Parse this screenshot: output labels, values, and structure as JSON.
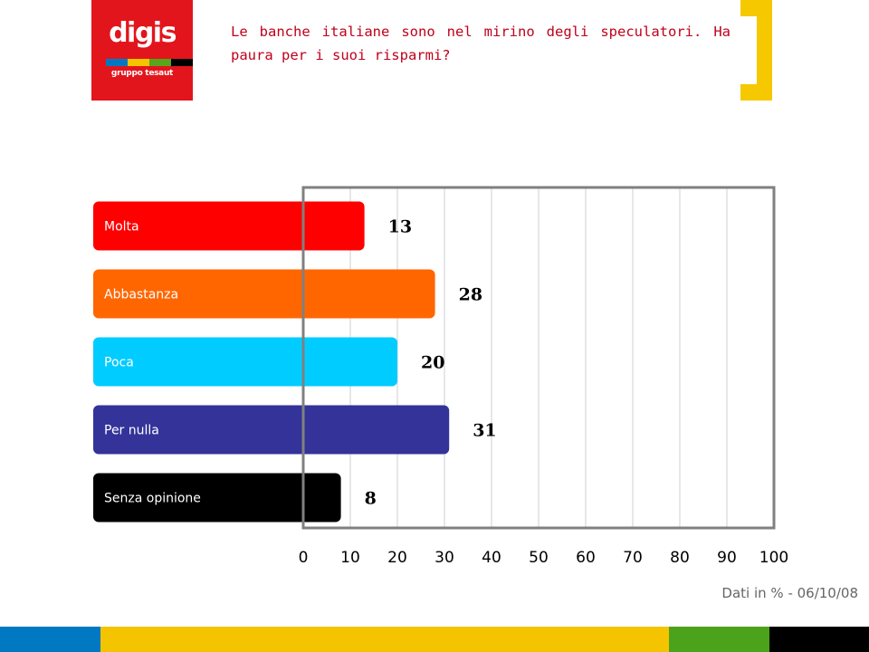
{
  "logo": {
    "word": "digis",
    "tagline": "gruppo tesaut",
    "background": "#e3151c",
    "stripe_colors": [
      "#0079c2",
      "#f5c400",
      "#58a61c",
      "#000000"
    ]
  },
  "header": {
    "title": "Le banche italiane sono nel mirino degli speculatori. Ha paura per i suoi risparmi?",
    "title_color": "#c0001a",
    "bracket_color": "#f5c800"
  },
  "chart_data": {
    "type": "bar",
    "orientation": "horizontal",
    "categories": [
      "Molta",
      "Abbastanza",
      "Poca",
      "Per nulla",
      "Senza opinione"
    ],
    "values": [
      13,
      28,
      20,
      31,
      8
    ],
    "bar_colors": [
      "#ff0000",
      "#ff6600",
      "#00ccff",
      "#333399",
      "#000000"
    ],
    "xlim": [
      0,
      100
    ],
    "xticks": [
      "0",
      "10",
      "20",
      "30",
      "40",
      "50",
      "60",
      "70",
      "80",
      "90",
      "100"
    ],
    "grid": true
  },
  "footer": {
    "source": "Dati in % - 06/10/08"
  },
  "bottom_bar": {
    "colors": [
      "#0079c2",
      "#f5c400",
      "#4ba21b",
      "#000000"
    ]
  }
}
